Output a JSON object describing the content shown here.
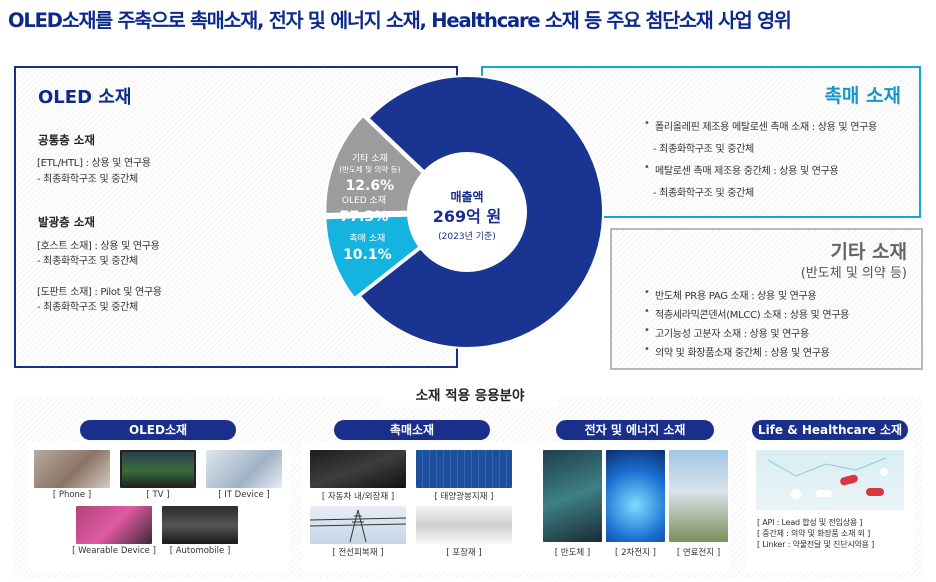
{
  "page_title": "OLED소재를 주축으로 촉매소재, 전자 및 에너지 소재, Healthcare 소재 등 주요 첨단소재 사업 영위",
  "oled_panel": {
    "title": "OLED 소재",
    "sections": [
      {
        "heading": "공통층 소재",
        "lines": [
          "[ETL/HTL] : 상용 및 연구용",
          " - 최종화학구조 및 중간체"
        ]
      },
      {
        "heading": "발광층 소재",
        "lines": [
          "[호스트 소재] : 상용 및 연구용",
          " - 최종화학구조 및 중간체",
          "[도판트 소재] : Pilot 및 연구용",
          " - 최종화학구조 및 중간체"
        ]
      }
    ]
  },
  "catalyst_panel": {
    "title": "촉매 소재",
    "bullets": [
      "폴리올레핀 제조용 메탈로센 촉매 소재 : 상용 및 연구용",
      "메탈로센 촉매 제조용 중간체 : 상용 및 연구용"
    ],
    "sub_lines": [
      "- 최종화학구조 및 중간체",
      "- 최종화학구조 및 중간체"
    ]
  },
  "other_panel": {
    "title": "기타 소재",
    "subtitle": "(반도체 및 의약 등)",
    "bullets": [
      "반도체 PR용 PAG 소재 : 상용 및 연구용",
      "적층세라믹콘덴서(MLCC) 소재 : 상용 및 연구용",
      "고기능성 고분자 소재 : 상용 및 연구용",
      "의약 및 화장품소재 중간체 : 상용 및 연구용"
    ]
  },
  "chart_data": {
    "type": "pie",
    "center_label": "매출액",
    "center_value": "269억 원",
    "center_note": "(2023년 기준)",
    "slices": [
      {
        "label": "OLED 소재",
        "sublabel": "",
        "value": 77.3,
        "value_text": "77.3%",
        "color": "#1a3591"
      },
      {
        "label": "촉매 소재",
        "sublabel": "",
        "value": 10.1,
        "value_text": "10.1%",
        "color": "#14b3e0"
      },
      {
        "label": "기타 소재",
        "sublabel": "(반도체 및 의약 등)",
        "value": 12.6,
        "value_text": "12.6%",
        "color": "#9c9c9c"
      }
    ]
  },
  "applications": {
    "title": "소재 적용 응용분야",
    "groups": [
      {
        "name": "OLED소재",
        "items": [
          "[ Phone ]",
          "[ TV ]",
          "[ IT Device ]",
          "[ Wearable Device ]",
          "[ Automobile ]"
        ]
      },
      {
        "name": "촉매소재",
        "items": [
          "[ 자동차 내/외장재 ]",
          "[ 태양광봉지재 ]",
          "[ 전선피복재 ]",
          "[ 포장재 ]"
        ]
      },
      {
        "name": "전자 및 에너지 소재",
        "items": [
          "[ 반도체 ]",
          "[ 2차전지 ]",
          "[ 연료전지 ]"
        ]
      },
      {
        "name": "Life & Healthcare 소재",
        "items": [
          "[ API : Lead 합성 및 전임상용 ]",
          "[ 중간체 : 의약 및 화장품 소재 외 ]",
          "[ Linker : 약물전달 및 진단시약용 ]"
        ]
      }
    ]
  }
}
